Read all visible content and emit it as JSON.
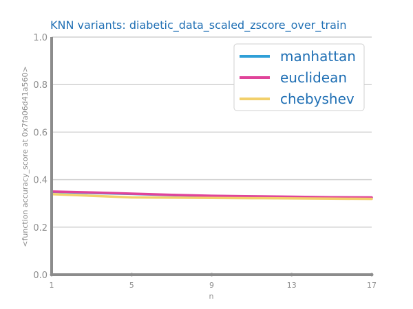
{
  "chart_data": {
    "type": "line",
    "title": "KNN variants: diabetic_data_scaled_zscore_over_train",
    "xlabel": "n",
    "ylabel": "<function accuracy_score at 0x7fa06d41a560>",
    "x": [
      1,
      3,
      5,
      7,
      9,
      11,
      13,
      15,
      17
    ],
    "xticks": [
      1,
      5,
      9,
      13,
      17
    ],
    "yticks": [
      "0.0",
      "0.2",
      "0.4",
      "0.6",
      "0.8",
      "1.0"
    ],
    "ylim": [
      0,
      1
    ],
    "xlim": [
      1,
      17
    ],
    "grid": "horizontal",
    "legend_position": "top-right",
    "series": [
      {
        "name": "manhattan",
        "color": "#2f9fd7",
        "values": [
          0.349,
          0.344,
          0.34,
          0.335,
          0.331,
          0.329,
          0.327,
          0.325,
          0.324
        ]
      },
      {
        "name": "euclidean",
        "color": "#e0449a",
        "values": [
          0.35,
          0.346,
          0.341,
          0.336,
          0.332,
          0.33,
          0.328,
          0.326,
          0.325
        ]
      },
      {
        "name": "chebyshev",
        "color": "#f2d06b",
        "values": [
          0.339,
          0.332,
          0.325,
          0.324,
          0.323,
          0.322,
          0.321,
          0.32,
          0.319
        ]
      }
    ]
  }
}
